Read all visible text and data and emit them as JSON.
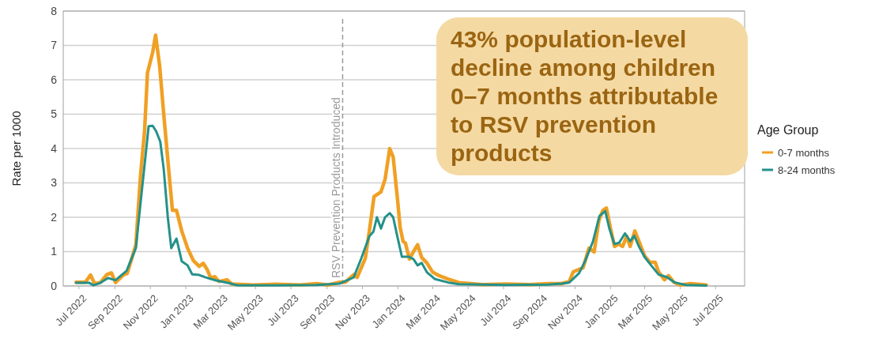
{
  "chart_data": {
    "type": "line",
    "ylabel": "Rate per 1000",
    "legend_title": "Age Group",
    "legend": "right",
    "grid": "y",
    "line_style": "solid",
    "marker": "none",
    "xlim": [
      "2022-06-04",
      "2025-08-20"
    ],
    "ylim": [
      0,
      8
    ],
    "yticks": [
      0,
      1,
      2,
      3,
      4,
      5,
      6,
      7,
      8
    ],
    "xticks": [
      {
        "value": "2022-07",
        "label": "Jul 2022"
      },
      {
        "value": "2022-09",
        "label": "Sep 2022"
      },
      {
        "value": "2022-11",
        "label": "Nov 2022"
      },
      {
        "value": "2023-01",
        "label": "Jan 2023"
      },
      {
        "value": "2023-03",
        "label": "Mar 2023"
      },
      {
        "value": "2023-05",
        "label": "May 2023"
      },
      {
        "value": "2023-07",
        "label": "Jul 2023"
      },
      {
        "value": "2023-09",
        "label": "Sep 2023"
      },
      {
        "value": "2023-11",
        "label": "Nov 2023"
      },
      {
        "value": "2024-01",
        "label": "Jan 2024"
      },
      {
        "value": "2024-03",
        "label": "Mar 2024"
      },
      {
        "value": "2024-05",
        "label": "May 2024"
      },
      {
        "value": "2024-07",
        "label": "Jul 2024"
      },
      {
        "value": "2024-09",
        "label": "Sep 2024"
      },
      {
        "value": "2024-11",
        "label": "Nov 2024"
      },
      {
        "value": "2025-01",
        "label": "Jan 2025"
      },
      {
        "value": "2025-03",
        "label": "Mar 2025"
      },
      {
        "value": "2025-05",
        "label": "May 2025"
      },
      {
        "value": "2025-07",
        "label": "Jul 2025"
      }
    ],
    "ref_lines": [
      {
        "axis": "x",
        "value": "2023-09-28",
        "label": "RSV Prevention Products Introduced",
        "color": "#999999",
        "line_style": "dashed"
      }
    ],
    "annotations": [
      "43% population-level decline among children 0–7 months attributable to RSV prevention products"
    ],
    "series": [
      {
        "name": "0-7 months",
        "color": "#f0a024",
        "x": [
          "2022-06-26",
          "2022-07-12",
          "2022-07-21",
          "2022-07-28",
          "2022-08-07",
          "2022-08-18",
          "2022-08-26",
          "2022-09-02",
          "2022-09-17",
          "2022-09-22",
          "2022-09-30",
          "2022-10-07",
          "2022-10-15",
          "2022-10-22",
          "2022-10-27",
          "2022-11-05",
          "2022-11-10",
          "2022-11-17",
          "2022-11-24",
          "2022-12-03",
          "2022-12-09",
          "2022-12-16",
          "2022-12-25",
          "2023-01-04",
          "2023-01-14",
          "2023-01-24",
          "2023-01-31",
          "2023-02-07",
          "2023-02-13",
          "2023-02-20",
          "2023-02-27",
          "2023-03-13",
          "2023-03-21",
          "2023-04-27",
          "2023-06-06",
          "2023-07-17",
          "2023-08-14",
          "2023-09-03",
          "2023-09-23",
          "2023-10-03",
          "2023-10-17",
          "2023-10-23",
          "2023-11-06",
          "2023-11-13",
          "2023-11-21",
          "2023-12-03",
          "2023-12-10",
          "2023-12-18",
          "2023-12-24",
          "2023-12-31",
          "2024-01-05",
          "2024-01-10",
          "2024-01-14",
          "2024-01-21",
          "2024-01-28",
          "2024-02-04",
          "2024-02-11",
          "2024-02-20",
          "2024-03-01",
          "2024-03-12",
          "2024-03-28",
          "2024-04-15",
          "2024-05-26",
          "2024-07-05",
          "2024-08-15",
          "2024-09-16",
          "2024-10-09",
          "2024-10-22",
          "2024-10-29",
          "2024-11-15",
          "2024-11-25",
          "2024-12-04",
          "2024-12-12",
          "2024-12-19",
          "2024-12-25",
          "2025-01-01",
          "2025-01-08",
          "2025-01-15",
          "2025-01-22",
          "2025-01-29",
          "2025-02-04",
          "2025-02-12",
          "2025-02-19",
          "2025-03-01",
          "2025-03-10",
          "2025-03-19",
          "2025-03-25",
          "2025-04-04",
          "2025-04-11",
          "2025-04-20",
          "2025-05-01",
          "2025-05-19",
          "2025-06-15"
        ],
        "values": [
          0.11,
          0.11,
          0.32,
          0.07,
          0.1,
          0.33,
          0.38,
          0.1,
          0.34,
          0.36,
          0.8,
          1.2,
          3.2,
          4.5,
          6.2,
          6.8,
          7.3,
          6.4,
          5.0,
          3.3,
          2.2,
          2.2,
          1.6,
          1.1,
          0.74,
          0.57,
          0.66,
          0.47,
          0.23,
          0.27,
          0.13,
          0.18,
          0.06,
          0.03,
          0.05,
          0.03,
          0.07,
          0.03,
          0.11,
          0.11,
          0.33,
          0.25,
          0.8,
          1.6,
          2.6,
          2.74,
          3.1,
          4.0,
          3.75,
          2.6,
          1.7,
          1.3,
          1.25,
          0.78,
          1.0,
          1.2,
          0.83,
          0.67,
          0.4,
          0.3,
          0.2,
          0.1,
          0.04,
          0.06,
          0.04,
          0.07,
          0.07,
          0.13,
          0.41,
          0.53,
          1.1,
          0.99,
          1.9,
          2.2,
          2.27,
          1.68,
          1.15,
          1.22,
          1.15,
          1.45,
          1.15,
          1.6,
          1.3,
          0.87,
          0.69,
          0.69,
          0.41,
          0.18,
          0.3,
          0.11,
          0.03,
          0.07,
          0.03
        ]
      },
      {
        "name": "8-24 months",
        "color": "#24918a",
        "x": [
          "2022-06-26",
          "2022-07-19",
          "2022-07-26",
          "2022-08-07",
          "2022-08-20",
          "2022-09-02",
          "2022-09-21",
          "2022-10-07",
          "2022-10-15",
          "2022-10-25",
          "2022-10-29",
          "2022-11-05",
          "2022-11-11",
          "2022-11-18",
          "2022-11-24",
          "2022-12-01",
          "2022-12-07",
          "2022-12-16",
          "2022-12-25",
          "2023-01-04",
          "2023-01-12",
          "2023-01-24",
          "2023-02-04",
          "2023-02-22",
          "2023-03-17",
          "2023-03-30",
          "2023-06-06",
          "2023-08-14",
          "2023-09-23",
          "2023-10-17",
          "2023-10-30",
          "2023-11-13",
          "2023-11-20",
          "2023-11-26",
          "2023-12-03",
          "2023-12-10",
          "2023-12-18",
          "2023-12-24",
          "2023-12-31",
          "2024-01-08",
          "2024-01-20",
          "2024-01-28",
          "2024-02-04",
          "2024-02-11",
          "2024-02-20",
          "2024-03-05",
          "2024-03-28",
          "2024-04-15",
          "2024-07-05",
          "2024-09-16",
          "2024-10-09",
          "2024-10-22",
          "2024-11-08",
          "2024-11-19",
          "2024-12-02",
          "2024-12-13",
          "2024-12-23",
          "2024-12-30",
          "2025-01-08",
          "2025-01-16",
          "2025-01-26",
          "2025-02-04",
          "2025-02-11",
          "2025-02-19",
          "2025-03-01",
          "2025-03-12",
          "2025-03-25",
          "2025-04-08",
          "2025-04-22",
          "2025-05-11",
          "2025-06-15"
        ],
        "values": [
          0.09,
          0.09,
          0.02,
          0.09,
          0.23,
          0.17,
          0.44,
          1.1,
          2.4,
          4.0,
          4.65,
          4.66,
          4.5,
          4.2,
          3.4,
          2.0,
          1.1,
          1.38,
          0.72,
          0.6,
          0.34,
          0.32,
          0.25,
          0.16,
          0.08,
          0.02,
          0.02,
          0.03,
          0.07,
          0.25,
          0.8,
          1.45,
          1.58,
          2.0,
          1.67,
          2.0,
          2.12,
          2.0,
          1.45,
          0.85,
          0.85,
          0.78,
          0.6,
          0.67,
          0.4,
          0.2,
          0.1,
          0.05,
          0.03,
          0.04,
          0.07,
          0.1,
          0.37,
          0.75,
          1.3,
          2.03,
          2.18,
          1.68,
          1.22,
          1.26,
          1.53,
          1.3,
          1.46,
          1.15,
          0.84,
          0.6,
          0.33,
          0.26,
          0.1,
          0.03,
          0.01
        ]
      }
    ]
  }
}
